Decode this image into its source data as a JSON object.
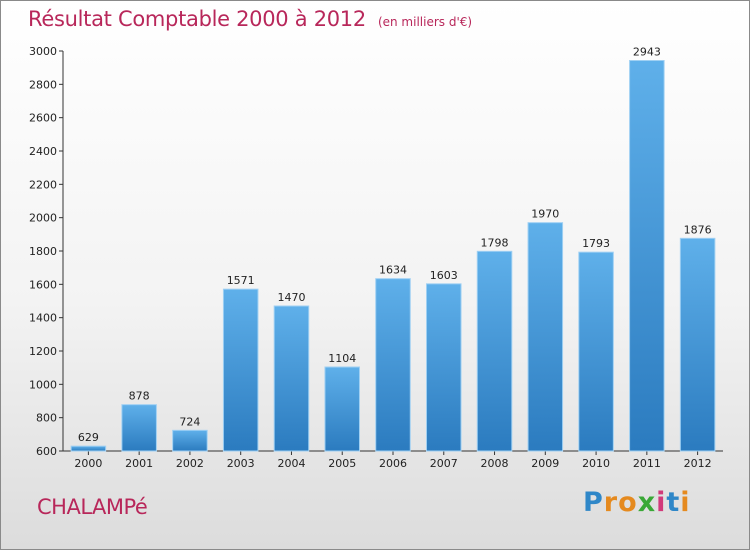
{
  "chart_data": {
    "type": "bar",
    "title": "Résultat Comptable 2000 à 2012",
    "unit_note": "(en milliers d'€)",
    "categories": [
      "2000",
      "2001",
      "2002",
      "2003",
      "2004",
      "2005",
      "2006",
      "2007",
      "2008",
      "2009",
      "2010",
      "2011",
      "2012"
    ],
    "values": [
      629,
      878,
      724,
      1571,
      1470,
      1104,
      1634,
      1603,
      1798,
      1970,
      1793,
      2943,
      1876
    ],
    "y_ticks": [
      600,
      800,
      1000,
      1200,
      1400,
      1600,
      1800,
      2000,
      2200,
      2400,
      2600,
      2800,
      3000
    ],
    "ylim": [
      600,
      3000
    ],
    "xlabel": "",
    "ylabel": "",
    "grid": false,
    "bar_color": "#3a95d8",
    "title_color": "#b8275a"
  },
  "footer": {
    "commune": "CHALAMPé",
    "brand": {
      "letters": [
        "P",
        "r",
        "o",
        "x",
        "i",
        "t",
        "i"
      ],
      "colors": [
        "#2f87c8",
        "#e58a1f",
        "#e58a1f",
        "#3aa836",
        "#d23a7a",
        "#2f87c8",
        "#e58a1f"
      ]
    }
  }
}
